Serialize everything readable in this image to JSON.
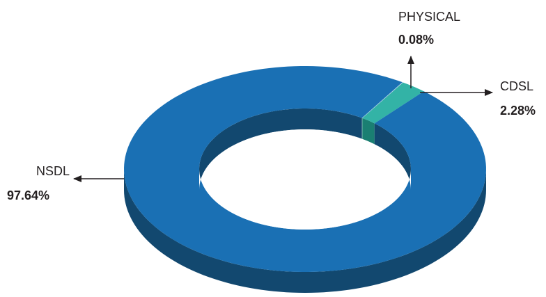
{
  "chart_data": {
    "type": "pie",
    "style": "3d-donut",
    "title": "",
    "slices": [
      {
        "label": "NSDL",
        "value": 97.64,
        "value_label": "97.64%",
        "color": "#1a70b4",
        "side_color": "#12486f"
      },
      {
        "label": "CDSL",
        "value": 2.28,
        "value_label": "2.28%",
        "color": "#33b3a6",
        "side_color": "#1a7f72"
      },
      {
        "label": "PHYSICAL",
        "value": 0.08,
        "value_label": "0.08%",
        "color": "#a9cce6",
        "side_color": "#8fbcb8"
      }
    ]
  }
}
